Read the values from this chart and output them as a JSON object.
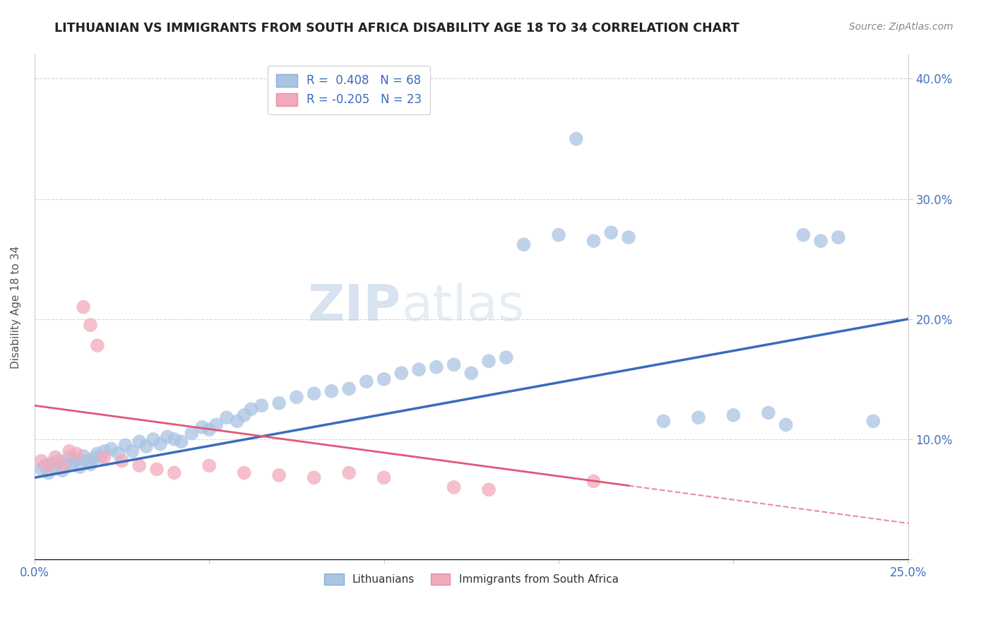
{
  "title": "LITHUANIAN VS IMMIGRANTS FROM SOUTH AFRICA DISABILITY AGE 18 TO 34 CORRELATION CHART",
  "source": "Source: ZipAtlas.com",
  "xlabel": "",
  "ylabel": "Disability Age 18 to 34",
  "xmin": 0.0,
  "xmax": 0.25,
  "ymin": 0.0,
  "ymax": 0.42,
  "xticks": [
    0.0,
    0.05,
    0.1,
    0.15,
    0.2,
    0.25
  ],
  "yticks": [
    0.0,
    0.1,
    0.2,
    0.3,
    0.4
  ],
  "xtick_labels": [
    "0.0%",
    "",
    "",
    "",
    "",
    "25.0%"
  ],
  "ytick_labels": [
    "",
    "10.0%",
    "20.0%",
    "30.0%",
    "40.0%"
  ],
  "blue_R": 0.408,
  "blue_N": 68,
  "pink_R": -0.205,
  "pink_N": 23,
  "blue_color": "#aac4e2",
  "pink_color": "#f2aabb",
  "blue_line_color": "#3a6bbf",
  "pink_line_color": "#e05878",
  "legend_label_blue": "Lithuanians",
  "legend_label_pink": "Immigrants from South Africa",
  "watermark_zip": "ZIP",
  "watermark_atlas": "atlas",
  "blue_line_y0": 0.068,
  "blue_line_y1": 0.2,
  "pink_line_y0": 0.128,
  "pink_line_y1": 0.03,
  "blue_scatter_x": [
    0.002,
    0.003,
    0.004,
    0.005,
    0.006,
    0.007,
    0.008,
    0.009,
    0.01,
    0.011,
    0.012,
    0.013,
    0.014,
    0.015,
    0.016,
    0.017,
    0.018,
    0.019,
    0.02,
    0.022,
    0.024,
    0.026,
    0.028,
    0.03,
    0.032,
    0.034,
    0.036,
    0.038,
    0.04,
    0.042,
    0.045,
    0.048,
    0.05,
    0.052,
    0.055,
    0.058,
    0.06,
    0.062,
    0.065,
    0.07,
    0.075,
    0.08,
    0.085,
    0.09,
    0.095,
    0.1,
    0.105,
    0.11,
    0.115,
    0.12,
    0.125,
    0.13,
    0.135,
    0.14,
    0.15,
    0.155,
    0.16,
    0.165,
    0.17,
    0.18,
    0.19,
    0.2,
    0.21,
    0.215,
    0.22,
    0.225,
    0.23,
    0.24
  ],
  "blue_scatter_y": [
    0.075,
    0.078,
    0.072,
    0.08,
    0.076,
    0.082,
    0.074,
    0.079,
    0.085,
    0.08,
    0.083,
    0.077,
    0.086,
    0.082,
    0.079,
    0.084,
    0.088,
    0.085,
    0.09,
    0.092,
    0.088,
    0.095,
    0.09,
    0.098,
    0.094,
    0.1,
    0.096,
    0.102,
    0.1,
    0.098,
    0.105,
    0.11,
    0.108,
    0.112,
    0.118,
    0.115,
    0.12,
    0.125,
    0.128,
    0.13,
    0.135,
    0.138,
    0.14,
    0.142,
    0.148,
    0.15,
    0.155,
    0.158,
    0.16,
    0.162,
    0.155,
    0.165,
    0.168,
    0.262,
    0.27,
    0.35,
    0.265,
    0.272,
    0.268,
    0.115,
    0.118,
    0.12,
    0.122,
    0.112,
    0.27,
    0.265,
    0.268,
    0.115
  ],
  "pink_scatter_x": [
    0.002,
    0.004,
    0.006,
    0.008,
    0.01,
    0.012,
    0.014,
    0.016,
    0.018,
    0.02,
    0.025,
    0.03,
    0.035,
    0.04,
    0.05,
    0.06,
    0.07,
    0.08,
    0.09,
    0.1,
    0.12,
    0.13,
    0.16
  ],
  "pink_scatter_y": [
    0.082,
    0.078,
    0.085,
    0.079,
    0.09,
    0.088,
    0.21,
    0.195,
    0.178,
    0.085,
    0.082,
    0.078,
    0.075,
    0.072,
    0.078,
    0.072,
    0.07,
    0.068,
    0.072,
    0.068,
    0.06,
    0.058,
    0.065
  ]
}
